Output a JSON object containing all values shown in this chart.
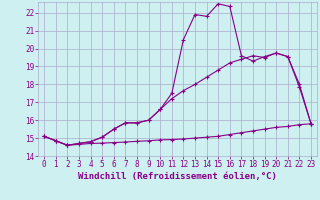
{
  "x": [
    0,
    1,
    2,
    3,
    4,
    5,
    6,
    7,
    8,
    9,
    10,
    11,
    12,
    13,
    14,
    15,
    16,
    17,
    18,
    19,
    20,
    21,
    22,
    23
  ],
  "line1": [
    15.1,
    14.85,
    14.6,
    14.65,
    14.7,
    14.72,
    14.75,
    14.78,
    14.82,
    14.85,
    14.9,
    14.92,
    14.95,
    15.0,
    15.05,
    15.1,
    15.2,
    15.3,
    15.4,
    15.5,
    15.6,
    15.65,
    15.75,
    15.8
  ],
  "line2": [
    15.1,
    14.85,
    14.6,
    14.7,
    14.8,
    15.05,
    15.5,
    15.85,
    15.85,
    16.0,
    16.6,
    17.2,
    17.65,
    18.0,
    18.4,
    18.8,
    19.2,
    19.4,
    19.6,
    19.5,
    19.75,
    19.55,
    17.85,
    15.8
  ],
  "line3": [
    15.1,
    14.85,
    14.6,
    14.7,
    14.8,
    15.05,
    15.5,
    15.85,
    15.85,
    16.0,
    16.6,
    17.5,
    20.5,
    21.9,
    21.8,
    22.5,
    22.35,
    19.6,
    19.3,
    19.55,
    19.75,
    19.55,
    18.0,
    15.8
  ],
  "background_color": "#cff0f0",
  "grid_color": "#aaaacc",
  "line_color": "#880088",
  "xlabel": "Windchill (Refroidissement éolien,°C)",
  "xlim_min": -0.5,
  "xlim_max": 23.5,
  "ylim_min": 14.0,
  "ylim_max": 22.6,
  "yticks": [
    14,
    15,
    16,
    17,
    18,
    19,
    20,
    21,
    22
  ],
  "xticks": [
    0,
    1,
    2,
    3,
    4,
    5,
    6,
    7,
    8,
    9,
    10,
    11,
    12,
    13,
    14,
    15,
    16,
    17,
    18,
    19,
    20,
    21,
    22,
    23
  ],
  "tick_fontsize": 5.5,
  "xlabel_fontsize": 6.5
}
